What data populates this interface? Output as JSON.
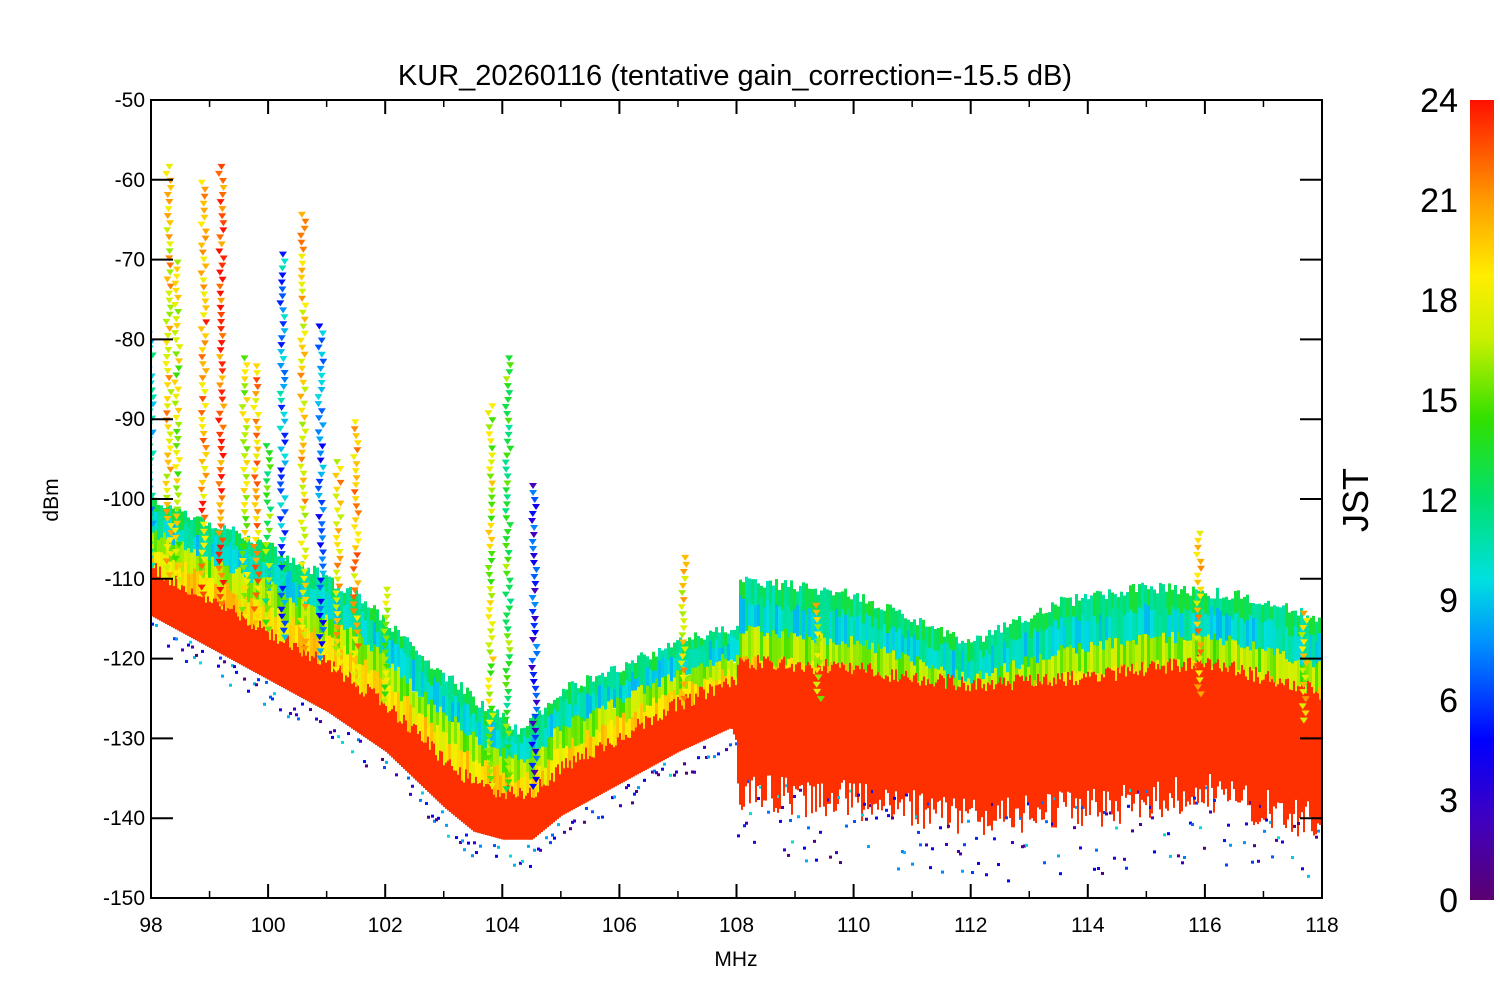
{
  "chart_data": {
    "type": "scatter",
    "title": "KUR_20260116 (tentative gain_correction=-15.5 dB)",
    "xlabel": "MHz",
    "ylabel": "dBm",
    "xlim": [
      98,
      118
    ],
    "ylim": [
      -150,
      -50
    ],
    "xticks": [
      "98",
      "100",
      "102",
      "104",
      "106",
      "108",
      "110",
      "112",
      "114",
      "116",
      "118"
    ],
    "yticks": [
      "-50",
      "-60",
      "-70",
      "-80",
      "-90",
      "-100",
      "-110",
      "-120",
      "-130",
      "-140",
      "-150"
    ],
    "grid": false,
    "colorbar": {
      "label": "JST",
      "range": [
        0,
        24
      ],
      "ticks": [
        "0",
        "3",
        "6",
        "9",
        "12",
        "15",
        "18",
        "21",
        "24"
      ],
      "colormap": "rainbow"
    },
    "background_level": {
      "description": "Night-time (red) noise floor along frequency",
      "x": [
        98,
        99,
        100,
        101,
        102,
        103,
        103.5,
        104,
        104.5,
        105,
        106,
        107,
        107.9,
        108,
        110,
        112,
        114,
        116,
        118
      ],
      "y": [
        -112,
        -116,
        -120,
        -124,
        -129,
        -136,
        -139,
        -140,
        -140,
        -137,
        -133,
        -129,
        -126,
        -128,
        -129,
        -131,
        -130,
        -128,
        -132
      ]
    },
    "daytime_upper_envelope": {
      "x": [
        98,
        100,
        101.5,
        102.5,
        103.5,
        104.3,
        105,
        106,
        107,
        108,
        108.01,
        110,
        112,
        113.5,
        115,
        116.5,
        118
      ],
      "y": [
        -100,
        -106,
        -112,
        -119,
        -125,
        -129,
        -124,
        -121,
        -118,
        -116,
        -110,
        -112,
        -118,
        -113,
        -111,
        -112,
        -115
      ]
    },
    "spikes": [
      {
        "x": 98.0,
        "top": -79,
        "jst": 10
      },
      {
        "x": 98.3,
        "top": -58,
        "jst": 19
      },
      {
        "x": 98.45,
        "top": -70,
        "jst": 17
      },
      {
        "x": 98.9,
        "top": -60,
        "jst": 21
      },
      {
        "x": 99.2,
        "top": -58,
        "jst": 23
      },
      {
        "x": 99.6,
        "top": -82,
        "jst": 17
      },
      {
        "x": 99.8,
        "top": -83,
        "jst": 20
      },
      {
        "x": 100.0,
        "top": -93,
        "jst": 14
      },
      {
        "x": 100.25,
        "top": -69,
        "jst": 8
      },
      {
        "x": 100.6,
        "top": -64,
        "jst": 19
      },
      {
        "x": 100.9,
        "top": -78,
        "jst": 7
      },
      {
        "x": 101.2,
        "top": -95,
        "jst": 19
      },
      {
        "x": 101.5,
        "top": -90,
        "jst": 20
      },
      {
        "x": 102.0,
        "top": -111,
        "jst": 16
      },
      {
        "x": 103.8,
        "top": -88,
        "jst": 17
      },
      {
        "x": 104.1,
        "top": -82,
        "jst": 14
      },
      {
        "x": 104.55,
        "top": -98,
        "jst": 5
      },
      {
        "x": 107.1,
        "top": -107,
        "jst": 19
      },
      {
        "x": 109.4,
        "top": -113,
        "jst": 18
      },
      {
        "x": 115.9,
        "top": -104,
        "jst": 20
      },
      {
        "x": 117.7,
        "top": -114,
        "jst": 19
      }
    ],
    "colors": {
      "night": "#ff3000",
      "frame": "#000000"
    }
  }
}
